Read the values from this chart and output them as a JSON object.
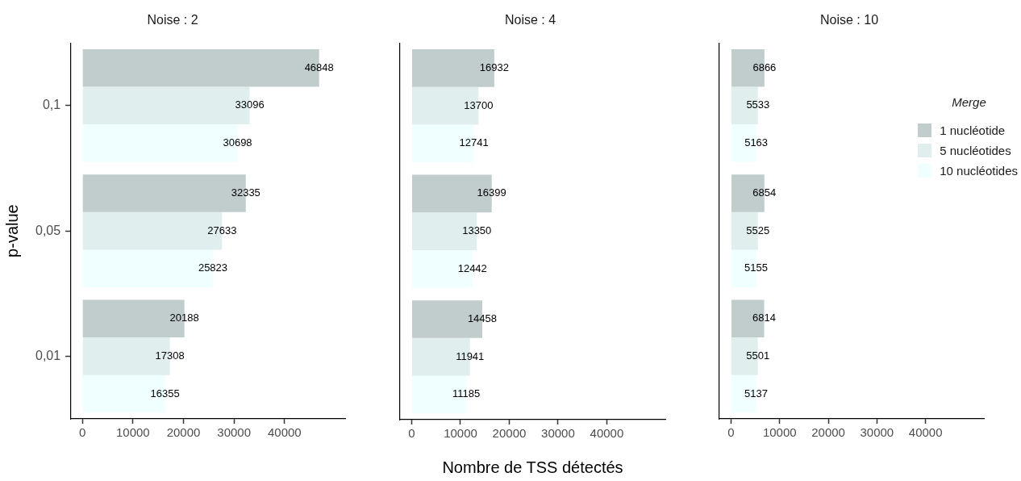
{
  "chart_data": [
    {
      "type": "bar",
      "orientation": "horizontal",
      "title": "Noise : 2",
      "ylabel": "p-value",
      "categories": [
        "0,1",
        "0,05",
        "0,01"
      ],
      "xlim": [
        -2400,
        52000
      ],
      "xticks": [
        0,
        10000,
        20000,
        30000,
        40000
      ],
      "data_labels": true,
      "series": [
        {
          "color": "#c1cdcd",
          "values": [
            46848,
            32335,
            20188
          ]
        },
        {
          "color": "#e0eeee",
          "values": [
            33096,
            27633,
            17308
          ]
        },
        {
          "color": "#f0ffff",
          "values": [
            30698,
            25823,
            16355
          ]
        }
      ]
    },
    {
      "type": "bar",
      "orientation": "horizontal",
      "title": "Noise : 4",
      "xlabel": "Nombre de TSS détectés",
      "categories": [
        "0,1",
        "0,05",
        "0,01"
      ],
      "xlim": [
        -2400,
        52000
      ],
      "xticks": [
        0,
        10000,
        20000,
        30000,
        40000
      ],
      "data_labels": true,
      "tick_labels": "x",
      "series": [
        {
          "color": "#c1cdcd",
          "values": [
            16932,
            16399,
            14458
          ]
        },
        {
          "color": "#e0eeee",
          "values": [
            13700,
            13350,
            11941
          ]
        },
        {
          "color": "#f0ffff",
          "values": [
            12741,
            12442,
            11185
          ]
        }
      ]
    },
    {
      "type": "bar",
      "orientation": "horizontal",
      "title": "Noise : 10",
      "legend_title": "Merge",
      "legend": "right",
      "categories": [
        "0,1",
        "0,05",
        "0,01"
      ],
      "xlim": [
        -2400,
        52000
      ],
      "xticks": [
        0,
        10000,
        20000,
        30000,
        40000
      ],
      "data_labels": true,
      "tick_labels": "x",
      "series": [
        {
          "name": "1 nucléotide",
          "color": "#c1cdcd",
          "values": [
            6866,
            6854,
            6814
          ]
        },
        {
          "name": "5 nucléotides",
          "color": "#e0eeee",
          "values": [
            5533,
            5525,
            5501
          ]
        },
        {
          "name": "10 nucléotides",
          "color": "#f0ffff",
          "values": [
            5163,
            5155,
            5137
          ]
        }
      ]
    }
  ]
}
